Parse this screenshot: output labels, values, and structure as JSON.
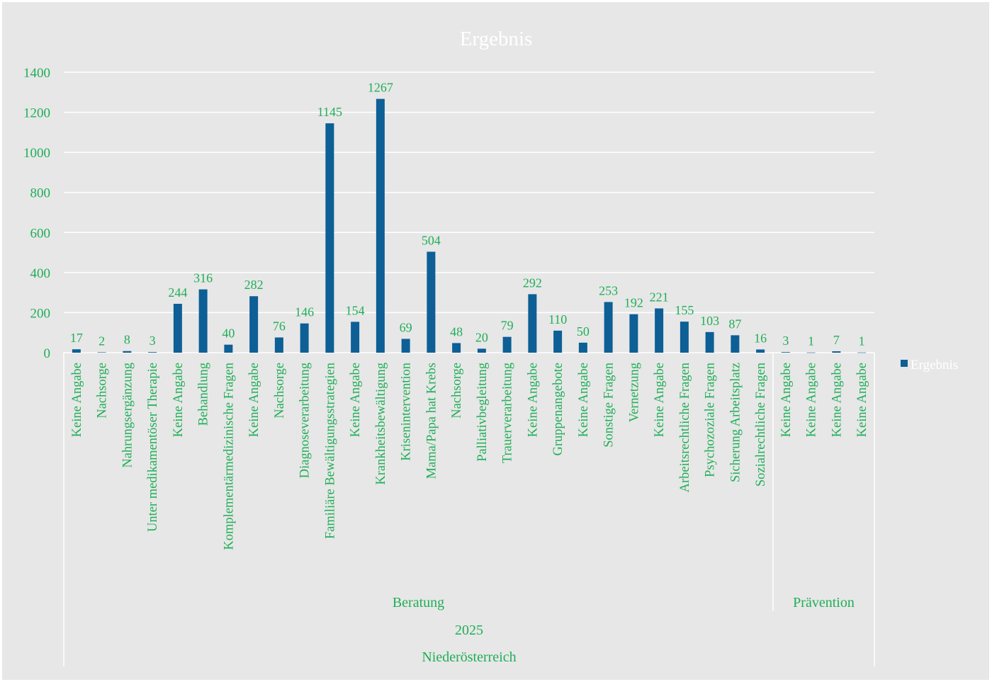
{
  "chart_data": {
    "type": "bar",
    "title": "Ergebnis",
    "ylim": [
      0,
      1400
    ],
    "yticks": [
      0,
      200,
      400,
      600,
      800,
      1000,
      1200,
      1400
    ],
    "grid": true,
    "legend_position": "right",
    "colors": {
      "bar": "#0d5f96",
      "label_text": "#1fae57",
      "title_text": "#ffffff",
      "legend_text": "#ffffff",
      "grid": "#ffffff",
      "background": "#e7e7e7"
    },
    "categories": [
      "Keine Angabe",
      "Nachsorge",
      "Nahrungsergänzung",
      "Unter medikamentöser Therapie",
      "Keine Angabe",
      "Behandlung",
      "Komplementärmedizinische Fragen",
      "Keine Angabe",
      "Nachsorge",
      "Diagnoseverarbeitung",
      "Familiäre Bewältigungsstrategien",
      "Keine Angabe",
      "Krankheitsbewältigung",
      "Krisenintervention",
      "Mama/Papa hat Krebs",
      "Nachsorge",
      "Palliativbegleitung",
      "Trauerverarbeitung",
      "Keine Angabe",
      "Gruppenangebote",
      "Keine Angabe",
      "Sonstige Fragen",
      "Vernetzung",
      "Keine Angabe",
      "Arbeitsrechtliche Fragen",
      "Psychozoziale Fragen",
      "Sicherung Arbeitsplatz",
      "Sozialrechtliche Fragen",
      "Keine Angabe",
      "Keine Angabe",
      "Keine Angabe",
      "Keine Angabe"
    ],
    "series": [
      {
        "name": "Ergebnis",
        "values": [
          17,
          2,
          8,
          3,
          244,
          316,
          40,
          282,
          76,
          146,
          1145,
          154,
          1267,
          69,
          504,
          48,
          20,
          79,
          292,
          110,
          50,
          253,
          192,
          221,
          155,
          103,
          87,
          16,
          3,
          1,
          7,
          1
        ]
      }
    ],
    "category_groups": [
      {
        "label": "Beratung",
        "count": 28
      },
      {
        "label": "Prävention",
        "count": 4
      }
    ],
    "group_level_2": "2025",
    "group_level_3": "Niederösterreich"
  }
}
